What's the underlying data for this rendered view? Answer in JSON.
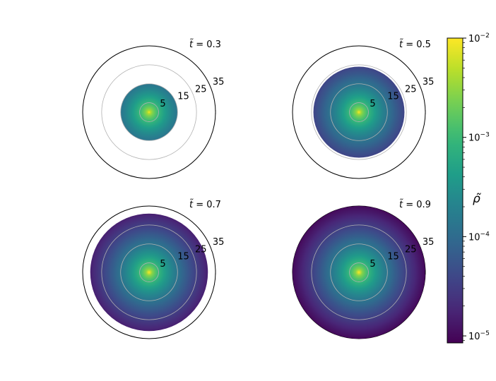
{
  "chart_data": {
    "type": "heatmap",
    "projection": "polar",
    "color_scale": "log",
    "colormap": "viridis",
    "radial_ticks": [
      "5",
      "15",
      "25",
      "35"
    ],
    "radial_tick_values": [
      5,
      15,
      25,
      35
    ],
    "radial_limit": 35,
    "panels": [
      {
        "label": "0.3",
        "time": 0.3,
        "filled_radius": 15
      },
      {
        "label": "0.5",
        "time": 0.5,
        "filled_radius": 24
      },
      {
        "label": "0.7",
        "time": 0.7,
        "filled_radius": 31
      },
      {
        "label": "0.9",
        "time": 0.9,
        "filled_radius": 35
      }
    ],
    "colorbar": {
      "label": "ρ̃",
      "range": [
        8.5e-06,
        0.01
      ],
      "ticks": [
        {
          "value": 0.01,
          "label": "10",
          "exp": "−2"
        },
        {
          "value": 0.001,
          "label": "10",
          "exp": "−3"
        },
        {
          "value": 0.0001,
          "label": "10",
          "exp": "−4"
        },
        {
          "value": 1e-05,
          "label": "10",
          "exp": "−5"
        }
      ]
    },
    "grid": true
  }
}
